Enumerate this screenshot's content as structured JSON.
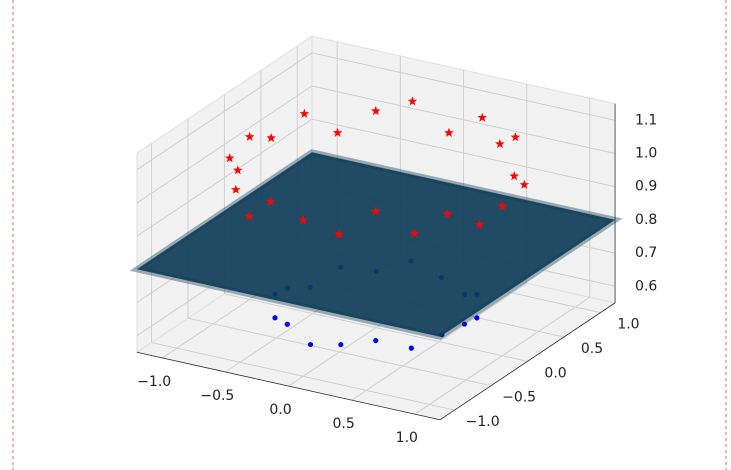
{
  "chart_data": {
    "type": "scatter3d",
    "xlim": [
      -1.2,
      1.2
    ],
    "ylim": [
      -1.2,
      1.2
    ],
    "zlim": [
      0.55,
      1.15
    ],
    "xticks": [
      {
        "value": -1.0,
        "label": "−1.0"
      },
      {
        "value": -0.5,
        "label": "−0.5"
      },
      {
        "value": 0.0,
        "label": "0.0"
      },
      0.5,
      {
        "value": 1.0,
        "label": "1.0"
      }
    ],
    "yticks": [
      {
        "value": -1.0,
        "label": "−1.0"
      },
      {
        "value": -0.5,
        "label": "−0.5"
      },
      {
        "value": 0.0,
        "label": "0.0"
      },
      0.5,
      {
        "value": 1.0,
        "label": "1.0"
      }
    ],
    "zticks": [
      0.6,
      0.7,
      0.8,
      0.9,
      {
        "value": 1.0,
        "label": "1.0"
      },
      1.1
    ],
    "grid": true,
    "plane": {
      "z": 0.8,
      "color": "#0f3d58"
    },
    "series": [
      {
        "color": "#0000ff",
        "marker": "dot",
        "x": [
          0.7,
          0.66,
          0.54,
          0.35,
          0.12,
          -0.12,
          -0.35,
          -0.54,
          -0.66,
          -0.7,
          -0.66,
          -0.54,
          -0.35,
          -0.12,
          0.12,
          0.35,
          0.54,
          0.66
        ],
        "y": [
          0.0,
          0.24,
          0.45,
          0.61,
          0.69,
          0.69,
          0.61,
          0.45,
          0.24,
          0.0,
          -0.24,
          -0.45,
          -0.61,
          -0.69,
          -0.69,
          -0.61,
          -0.45,
          -0.24
        ],
        "z": [
          0.62,
          0.6,
          0.63,
          0.59,
          0.61,
          0.64,
          0.6,
          0.62,
          0.58,
          0.61,
          0.63,
          0.6,
          0.62,
          0.59,
          0.61,
          0.63,
          0.6,
          0.62
        ]
      },
      {
        "color": "#ff0000",
        "marker": "star",
        "x": [
          1.0,
          0.95,
          0.88,
          0.7,
          0.49,
          0.27,
          0.0,
          -0.26,
          -0.51,
          -0.72,
          -0.85,
          -0.98,
          -1.0,
          -0.95,
          -0.87,
          -0.7,
          -0.5,
          -0.27,
          0.0,
          0.25,
          0.5,
          0.72,
          0.86,
          0.97
        ],
        "y": [
          0.0,
          0.25,
          0.51,
          0.7,
          0.85,
          0.99,
          1.0,
          0.95,
          0.88,
          0.72,
          0.49,
          0.26,
          0.0,
          -0.25,
          -0.5,
          -0.71,
          -0.87,
          -0.98,
          -1.0,
          -0.94,
          -0.87,
          -0.72,
          -0.51,
          -0.26
        ],
        "z": [
          1.0,
          1.05,
          0.98,
          1.08,
          1.02,
          1.06,
          0.99,
          1.07,
          1.03,
          0.97,
          1.05,
          1.0,
          1.04,
          0.98,
          1.06,
          1.01,
          0.97,
          1.05,
          1.02,
          0.99,
          1.07,
          1.0,
          1.04,
          0.98
        ]
      }
    ]
  }
}
